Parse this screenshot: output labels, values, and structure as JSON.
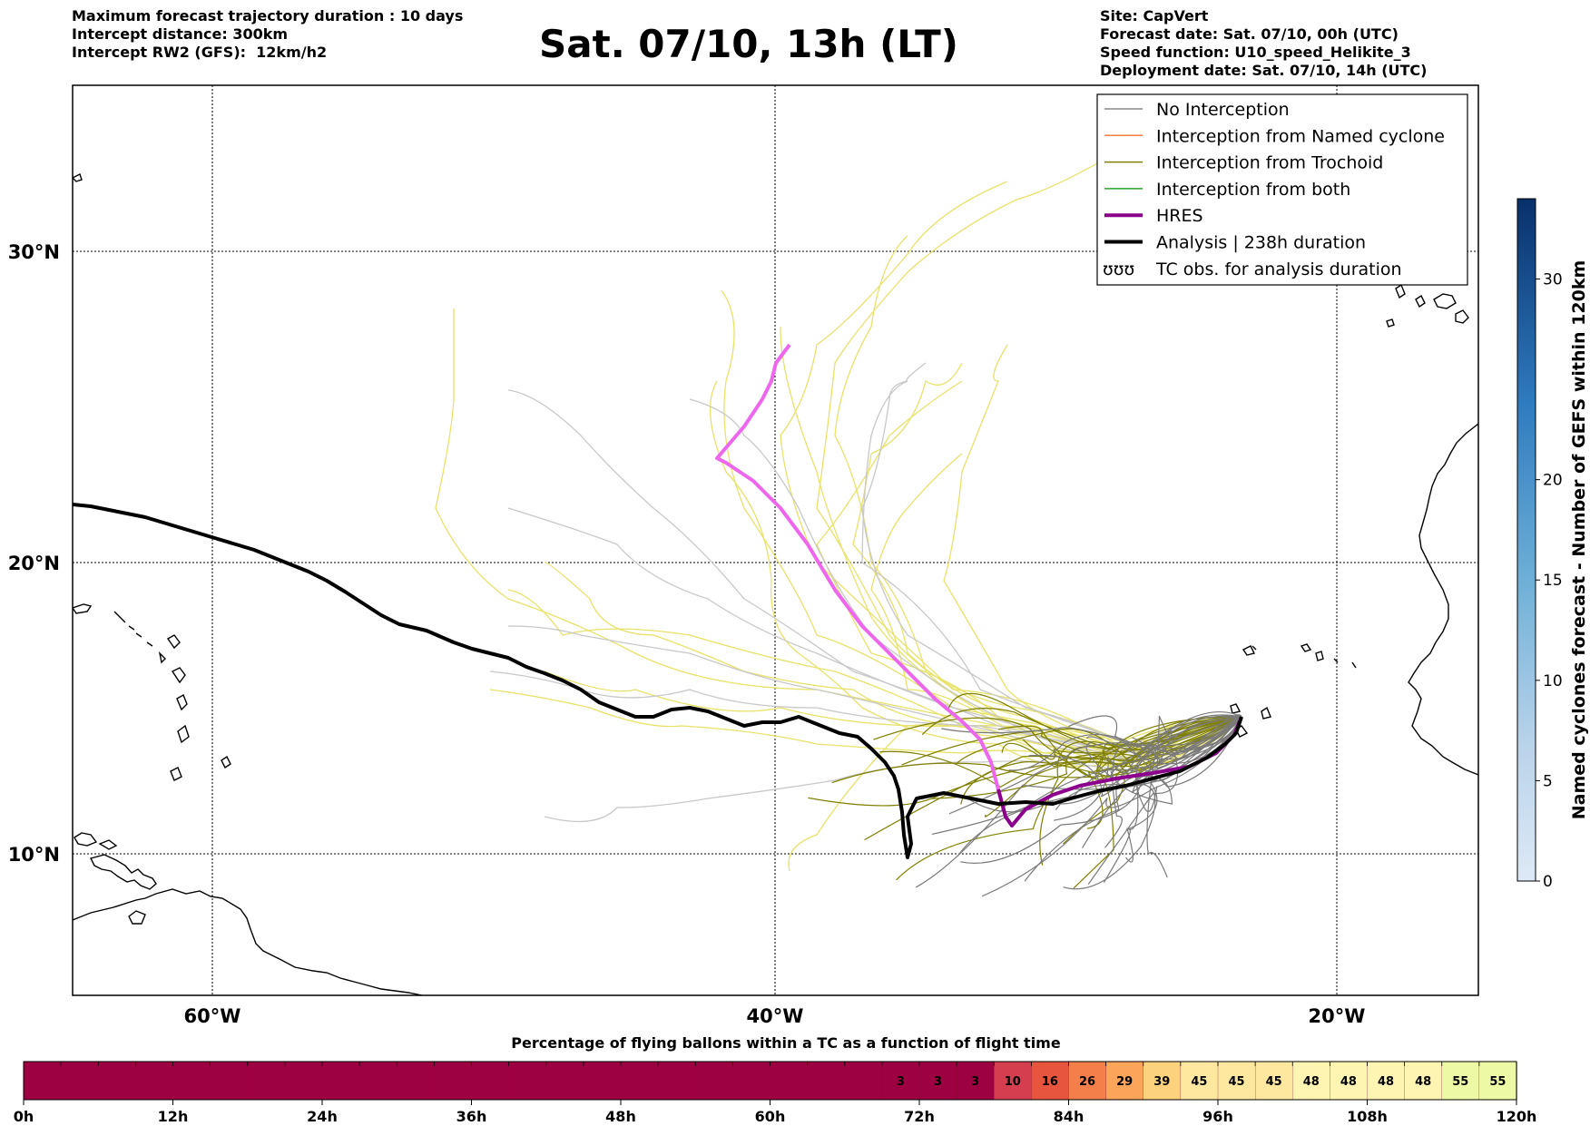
{
  "header": {
    "left_lines": [
      "Maximum forecast trajectory duration : 10 days",
      "Intercept distance: 300km",
      "Intercept RW2 (GFS):  12km/h2"
    ],
    "title": "Sat. 07/10, 13h (LT)",
    "right_lines": [
      "Site: CapVert",
      "Forecast date: Sat. 07/10, 00h (UTC)",
      "Speed function: U10_speed_Helikite_3",
      "Deployment date: Sat. 07/10, 14h (UTC)"
    ]
  },
  "map": {
    "lat_labels": [
      "30°N",
      "20°N",
      "10°N"
    ],
    "lon_labels": [
      "60°W",
      "40°W",
      "20°W"
    ],
    "colors": {
      "no_interception": "#7a7a7a",
      "no_interception_light": "#c8c8c8",
      "named_cyclone": "#ff7f3f",
      "trochoid": "#7f7f00",
      "trochoid_light": "#e8e26a",
      "both": "#2ca02c",
      "hres": "#8b008b",
      "hres_light": "#ee66ee",
      "analysis": "#000000"
    }
  },
  "legend": {
    "items": [
      {
        "label": "No Interception",
        "color": "#8a8a8a",
        "style": "thin"
      },
      {
        "label": "Interception from Named cyclone",
        "color": "#ff7f3f",
        "style": "thin"
      },
      {
        "label": "Interception from Trochoid",
        "color": "#7f7f00",
        "style": "thin"
      },
      {
        "label": "Interception from both",
        "color": "#2ca02c",
        "style": "thin"
      },
      {
        "label": "HRES",
        "color": "#8b008b",
        "style": "thick"
      },
      {
        "label": "Analysis | 238h duration",
        "color": "#000000",
        "style": "thick"
      },
      {
        "label": "TC obs. for analysis duration",
        "color": "#000000",
        "style": "symbol",
        "symbol": "ʊʊʊ"
      }
    ]
  },
  "colorbar": {
    "label": "Named cyclones forecast - Number of GEFS within 120km",
    "ticks": [
      "0",
      "5",
      "10",
      "15",
      "20",
      "30"
    ]
  },
  "bottom_bar": {
    "title": "Percentage of flying ballons within a TC as a function of flight time",
    "hour_ticks": [
      "0h",
      "12h",
      "24h",
      "36h",
      "48h",
      "60h",
      "72h",
      "84h",
      "96h",
      "108h",
      "120h"
    ],
    "percentages": [
      null,
      null,
      null,
      null,
      null,
      null,
      null,
      null,
      null,
      null,
      null,
      null,
      null,
      null,
      null,
      null,
      null,
      null,
      null,
      null,
      null,
      null,
      null,
      "3",
      "3",
      "3",
      "10",
      "16",
      "26",
      "29",
      "39",
      "45",
      "45",
      "45",
      "48",
      "48",
      "48",
      "48",
      "55",
      "55"
    ]
  }
}
